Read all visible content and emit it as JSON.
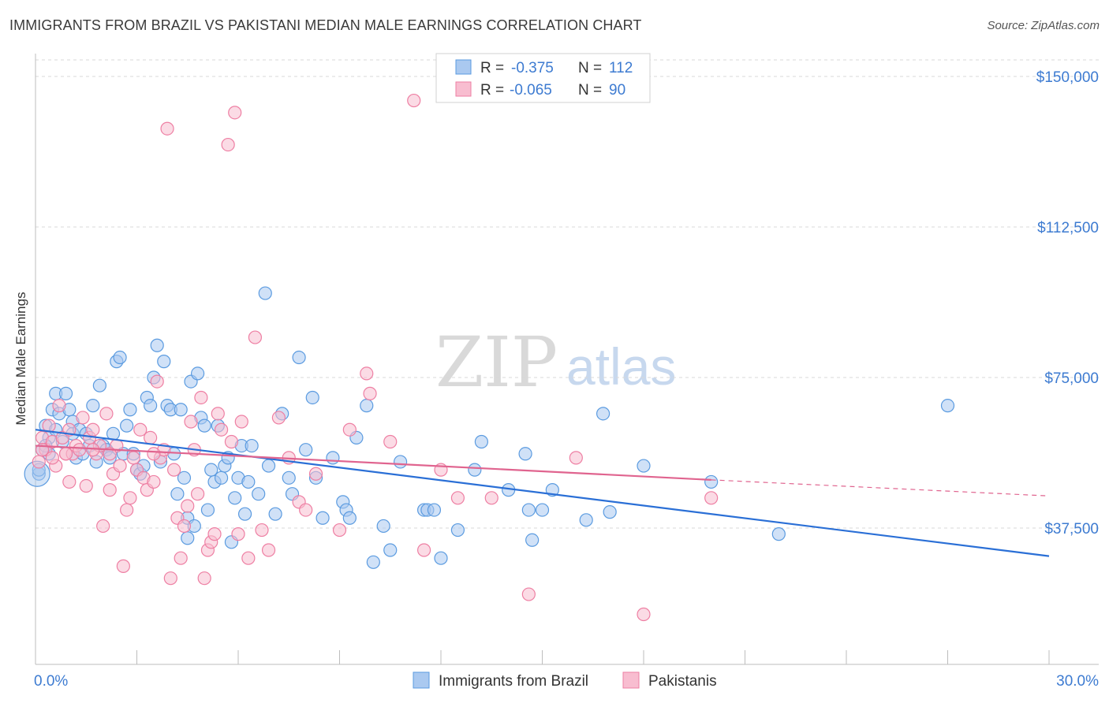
{
  "title": "IMMIGRANTS FROM BRAZIL VS PAKISTANI MEDIAN MALE EARNINGS CORRELATION CHART",
  "source": "Source: ZipAtlas.com",
  "watermark": {
    "zip": "ZIP",
    "atlas": "atlas"
  },
  "colors": {
    "blue": "#5b9be0",
    "blue_fill": "#aac9f0",
    "blue_line": "#2a6fd6",
    "pink": "#ee7fa3",
    "pink_fill": "#f8bdd0",
    "pink_line": "#e0648f",
    "axis_label": "#3d7bd1",
    "grid": "#d8d8d8"
  },
  "legend_top": {
    "rows": [
      {
        "r_label": "R =",
        "r_value": "-0.375",
        "n_label": "N =",
        "n_value": "112"
      },
      {
        "r_label": "R =",
        "r_value": "-0.065",
        "n_label": "N =",
        "n_value": "90"
      }
    ]
  },
  "legend_bottom": [
    "Immigrants from Brazil",
    "Pakistanis"
  ],
  "chart_data": {
    "type": "scatter",
    "ylabel": "Median Male Earnings",
    "xlim": [
      0,
      30
    ],
    "ylim": [
      0,
      155000
    ],
    "x_tick_labels": [
      "0.0%",
      "30.0%"
    ],
    "y_ticks": [
      37500,
      75000,
      112500,
      150000
    ],
    "y_tick_labels": [
      "$37,500",
      "$75,000",
      "$112,500",
      "$150,000"
    ],
    "grid": "horizontal dashed",
    "legend_position": "top-center and bottom-center",
    "series": [
      {
        "name": "Immigrants from Brazil",
        "color": "#5b9be0",
        "trend": {
          "x": [
            0,
            30
          ],
          "y": [
            62000,
            30500
          ],
          "style": "solid"
        },
        "points": [
          [
            0.1,
            51000
          ],
          [
            0.2,
            57000
          ],
          [
            0.3,
            63000
          ],
          [
            0.4,
            56000
          ],
          [
            0.4,
            60000
          ],
          [
            0.5,
            67000
          ],
          [
            0.6,
            62000
          ],
          [
            0.6,
            71000
          ],
          [
            0.7,
            66000
          ],
          [
            0.8,
            59000
          ],
          [
            0.9,
            71000
          ],
          [
            1.0,
            67000
          ],
          [
            1.1,
            61000
          ],
          [
            1.1,
            64000
          ],
          [
            1.2,
            55000
          ],
          [
            1.3,
            62000
          ],
          [
            1.4,
            56000
          ],
          [
            1.5,
            61000
          ],
          [
            1.6,
            58000
          ],
          [
            1.7,
            68000
          ],
          [
            1.8,
            54000
          ],
          [
            1.9,
            73000
          ],
          [
            2.0,
            58000
          ],
          [
            2.1,
            57000
          ],
          [
            2.2,
            55000
          ],
          [
            2.3,
            61000
          ],
          [
            2.4,
            79000
          ],
          [
            2.5,
            80000
          ],
          [
            2.6,
            56000
          ],
          [
            2.7,
            63000
          ],
          [
            2.8,
            67000
          ],
          [
            2.9,
            56000
          ],
          [
            3.0,
            52000
          ],
          [
            3.1,
            51000
          ],
          [
            3.2,
            53000
          ],
          [
            3.3,
            70000
          ],
          [
            3.4,
            68000
          ],
          [
            3.5,
            75000
          ],
          [
            3.6,
            83000
          ],
          [
            3.7,
            54000
          ],
          [
            3.8,
            79000
          ],
          [
            3.9,
            68000
          ],
          [
            4.0,
            67000
          ],
          [
            4.1,
            56000
          ],
          [
            4.2,
            46000
          ],
          [
            4.3,
            67000
          ],
          [
            4.4,
            50000
          ],
          [
            4.5,
            40000
          ],
          [
            4.5,
            35000
          ],
          [
            4.6,
            74000
          ],
          [
            4.7,
            38000
          ],
          [
            4.8,
            76000
          ],
          [
            4.9,
            65000
          ],
          [
            5.0,
            63000
          ],
          [
            5.1,
            42000
          ],
          [
            5.2,
            52000
          ],
          [
            5.3,
            49000
          ],
          [
            5.4,
            63000
          ],
          [
            5.5,
            50000
          ],
          [
            5.6,
            53000
          ],
          [
            5.7,
            55000
          ],
          [
            5.8,
            34000
          ],
          [
            5.9,
            45000
          ],
          [
            6.0,
            50000
          ],
          [
            6.1,
            58000
          ],
          [
            6.2,
            41000
          ],
          [
            6.3,
            49000
          ],
          [
            6.4,
            58000
          ],
          [
            6.6,
            46000
          ],
          [
            6.8,
            96000
          ],
          [
            6.9,
            53000
          ],
          [
            7.1,
            41000
          ],
          [
            7.3,
            66000
          ],
          [
            7.5,
            50000
          ],
          [
            7.6,
            46000
          ],
          [
            7.8,
            80000
          ],
          [
            8.0,
            57000
          ],
          [
            8.2,
            70000
          ],
          [
            8.3,
            50000
          ],
          [
            8.5,
            40000
          ],
          [
            8.8,
            55000
          ],
          [
            9.1,
            44000
          ],
          [
            9.2,
            42000
          ],
          [
            9.3,
            40000
          ],
          [
            9.5,
            60000
          ],
          [
            9.8,
            68000
          ],
          [
            10.0,
            29000
          ],
          [
            10.3,
            38000
          ],
          [
            10.5,
            32000
          ],
          [
            10.8,
            54000
          ],
          [
            11.5,
            42000
          ],
          [
            11.6,
            42000
          ],
          [
            11.8,
            42000
          ],
          [
            12.0,
            30000
          ],
          [
            12.5,
            37000
          ],
          [
            13.0,
            52000
          ],
          [
            13.2,
            59000
          ],
          [
            14.0,
            47000
          ],
          [
            14.5,
            56000
          ],
          [
            14.6,
            42000
          ],
          [
            14.7,
            34500
          ],
          [
            15.0,
            42000
          ],
          [
            15.3,
            47000
          ],
          [
            16.3,
            39500
          ],
          [
            16.8,
            66000
          ],
          [
            17.0,
            41500
          ],
          [
            18.0,
            53000
          ],
          [
            20.0,
            49000
          ],
          [
            22.0,
            36000
          ],
          [
            27.0,
            68000
          ],
          [
            0.1,
            52000
          ],
          [
            0.3,
            58000
          ]
        ]
      },
      {
        "name": "Pakistanis",
        "color": "#ee7fa3",
        "trend": {
          "x": [
            0,
            20
          ],
          "y": [
            58000,
            49500
          ],
          "style": "solid",
          "dashed_to": [
            30,
            45500
          ]
        },
        "points": [
          [
            0.1,
            54000
          ],
          [
            0.2,
            60000
          ],
          [
            0.3,
            57000
          ],
          [
            0.4,
            63000
          ],
          [
            0.5,
            59000
          ],
          [
            0.6,
            53000
          ],
          [
            0.7,
            68000
          ],
          [
            0.8,
            60000
          ],
          [
            0.9,
            56000
          ],
          [
            1.0,
            62000
          ],
          [
            1.1,
            56000
          ],
          [
            1.2,
            58000
          ],
          [
            1.3,
            57000
          ],
          [
            1.4,
            65000
          ],
          [
            1.5,
            48000
          ],
          [
            1.6,
            60000
          ],
          [
            1.7,
            62000
          ],
          [
            1.8,
            56000
          ],
          [
            1.9,
            58000
          ],
          [
            2.0,
            38000
          ],
          [
            2.1,
            66000
          ],
          [
            2.2,
            47000
          ],
          [
            2.3,
            51000
          ],
          [
            2.4,
            58000
          ],
          [
            2.5,
            53000
          ],
          [
            2.6,
            28000
          ],
          [
            2.7,
            42000
          ],
          [
            2.8,
            45000
          ],
          [
            2.9,
            55000
          ],
          [
            3.0,
            52000
          ],
          [
            3.1,
            62000
          ],
          [
            3.2,
            50000
          ],
          [
            3.3,
            47000
          ],
          [
            3.4,
            60000
          ],
          [
            3.5,
            49000
          ],
          [
            3.6,
            74000
          ],
          [
            3.7,
            55000
          ],
          [
            3.8,
            57000
          ],
          [
            3.9,
            137000
          ],
          [
            4.0,
            25000
          ],
          [
            4.1,
            52000
          ],
          [
            4.2,
            40000
          ],
          [
            4.3,
            30000
          ],
          [
            4.4,
            38000
          ],
          [
            4.5,
            43000
          ],
          [
            4.6,
            64000
          ],
          [
            4.7,
            57000
          ],
          [
            4.8,
            46000
          ],
          [
            4.9,
            70000
          ],
          [
            5.0,
            25000
          ],
          [
            5.1,
            32000
          ],
          [
            5.2,
            34000
          ],
          [
            5.3,
            36000
          ],
          [
            5.4,
            66000
          ],
          [
            5.5,
            62000
          ],
          [
            5.7,
            133000
          ],
          [
            5.8,
            59000
          ],
          [
            5.9,
            141000
          ],
          [
            6.0,
            36000
          ],
          [
            6.1,
            64000
          ],
          [
            6.3,
            30000
          ],
          [
            6.5,
            85000
          ],
          [
            6.7,
            37000
          ],
          [
            6.9,
            32000
          ],
          [
            7.2,
            65000
          ],
          [
            7.5,
            55000
          ],
          [
            7.8,
            44000
          ],
          [
            8.0,
            42000
          ],
          [
            8.3,
            51000
          ],
          [
            9.0,
            37000
          ],
          [
            9.3,
            62000
          ],
          [
            9.8,
            76000
          ],
          [
            9.9,
            71000
          ],
          [
            10.5,
            59000
          ],
          [
            11.2,
            144000
          ],
          [
            11.5,
            32000
          ],
          [
            12.0,
            52000
          ],
          [
            12.5,
            45000
          ],
          [
            13.5,
            45000
          ],
          [
            14.6,
            21000
          ],
          [
            16.0,
            55000
          ],
          [
            18.0,
            16000
          ],
          [
            20.0,
            45000
          ],
          [
            1.0,
            49000
          ],
          [
            0.5,
            55000
          ],
          [
            2.2,
            56000
          ],
          [
            1.7,
            57000
          ],
          [
            0.9,
            56000
          ],
          [
            3.5,
            56000
          ],
          [
            0.2,
            57000
          ]
        ]
      }
    ]
  }
}
